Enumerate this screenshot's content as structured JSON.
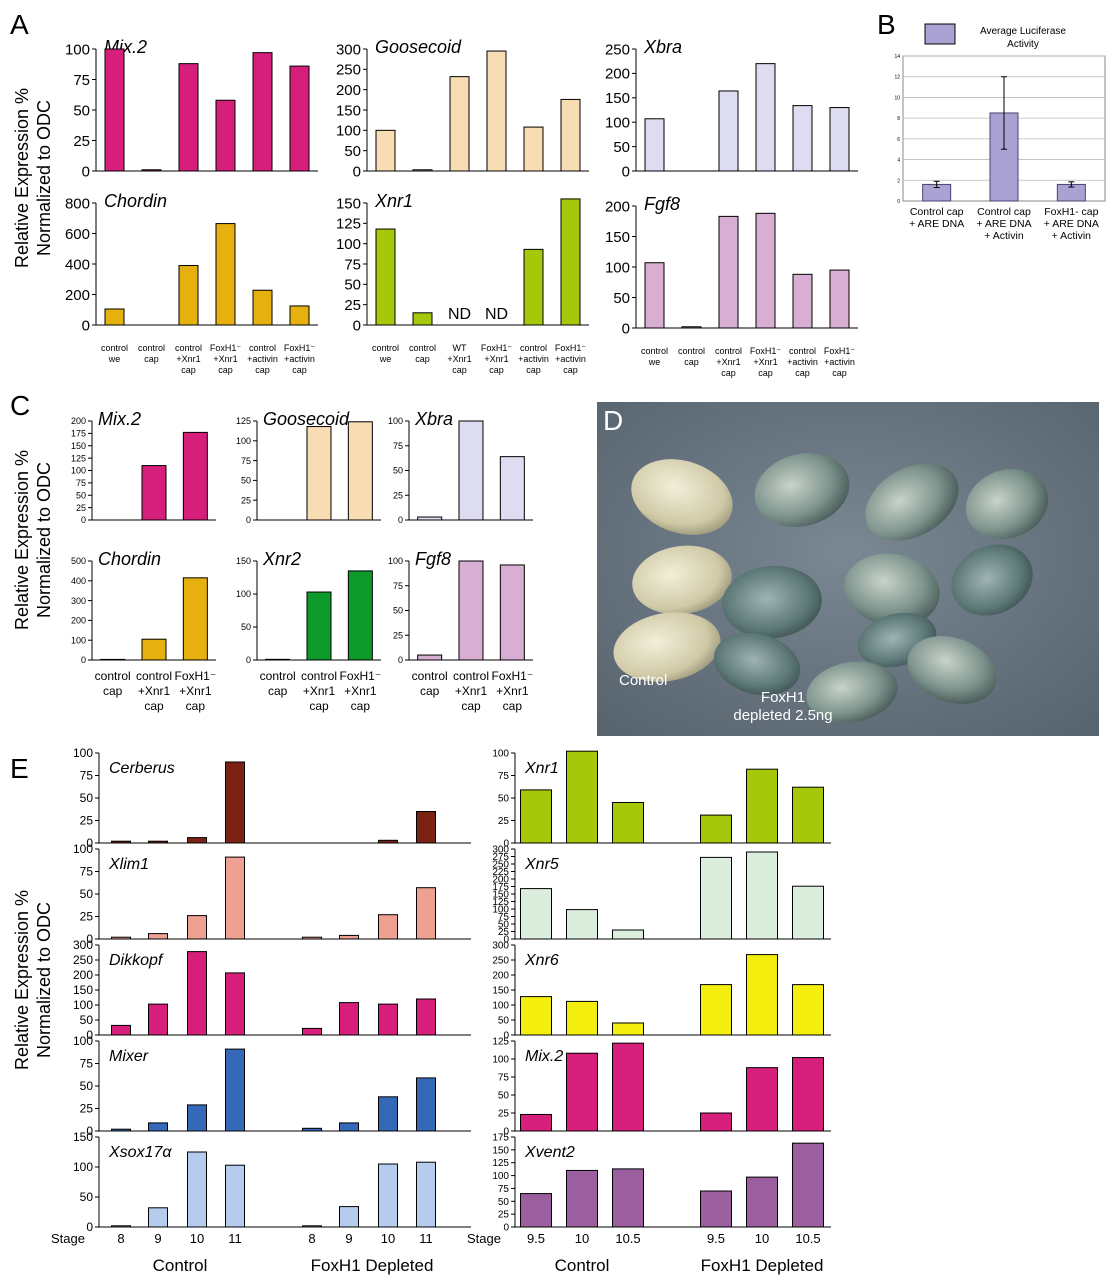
{
  "panel_labels": {
    "A": "A",
    "B": "B",
    "C": "C",
    "D": "D",
    "E": "E"
  },
  "y_axis_title": [
    "Relative Expression %",
    "Normalized to ODC"
  ],
  "nd_label": "ND",
  "photo": {
    "label_control": "Control",
    "label_foxh1": [
      "FoxH1",
      "depleted 2.5ng"
    ]
  },
  "colors": {
    "magenta": "#d61f7b",
    "peach": "#f7dcb4",
    "lavender": "#dedcf1",
    "gold": "#e6b10f",
    "lime": "#a6c80a",
    "mauve": "#d8aed3",
    "green": "#0e9a2b",
    "brown": "#7a2314",
    "salmon": "#eea192",
    "blue": "#3668b9",
    "lightblue": "#b5ccee",
    "mint": "#dbeedd",
    "yellow": "#f3ee0e",
    "purple": "#9b5fa0",
    "luc": "#aaa2d3"
  },
  "chart_data": [
    {
      "id": "A-mix2",
      "type": "bar",
      "title": "Mix.2",
      "ylim": [
        0,
        100
      ],
      "ticks": [
        0,
        25,
        50,
        75,
        100
      ],
      "categories": [
        [
          "control",
          "we"
        ],
        [
          "control",
          "cap"
        ],
        [
          "control",
          "+Xnr1",
          "cap"
        ],
        [
          "FoxH1⁻",
          "+Xnr1",
          "cap"
        ],
        [
          "control",
          "+activin",
          "cap"
        ],
        [
          "FoxH1⁻",
          "+activin",
          "cap"
        ]
      ],
      "values": [
        100,
        1,
        88,
        58,
        97,
        86
      ],
      "color": "magenta",
      "show_categories": false
    },
    {
      "id": "A-gsc",
      "type": "bar",
      "title": "Goosecoid",
      "ylim": [
        0,
        300
      ],
      "ticks": [
        0,
        50,
        100,
        150,
        200,
        250,
        300
      ],
      "categories": [
        [
          "control",
          "we"
        ],
        [
          "control",
          "cap"
        ],
        [
          "WT",
          "+Xnr1",
          "cap"
        ],
        [
          "FoxH1⁻",
          "+Xnr1",
          "cap"
        ],
        [
          "control",
          "+activin",
          "cap"
        ],
        [
          "FoxH1⁻",
          "+activin",
          "cap"
        ]
      ],
      "values": [
        100,
        3,
        232,
        295,
        108,
        176
      ],
      "color": "peach",
      "show_categories": false
    },
    {
      "id": "A-xbra",
      "type": "bar",
      "title": "Xbra",
      "ylim": [
        0,
        250
      ],
      "ticks": [
        0,
        50,
        100,
        150,
        200,
        250
      ],
      "categories": [
        [
          "control",
          "we"
        ],
        [
          "control",
          "cap"
        ],
        [
          "control",
          "+Xnr1",
          "cap"
        ],
        [
          "FoxH1⁻",
          "+Xnr1",
          "cap"
        ],
        [
          "control",
          "+activin",
          "cap"
        ],
        [
          "FoxH1⁻",
          "+activin",
          "cap"
        ]
      ],
      "values": [
        107,
        0,
        164,
        220,
        134,
        130
      ],
      "color": "lavender",
      "show_categories": false
    },
    {
      "id": "A-chd",
      "type": "bar",
      "title": "Chordin",
      "ylim": [
        0,
        800
      ],
      "ticks": [
        0,
        200,
        400,
        600,
        800
      ],
      "categories": [
        [
          "control",
          "we"
        ],
        [
          "control",
          "cap"
        ],
        [
          "control",
          "+Xnr1",
          "cap"
        ],
        [
          "FoxH1⁻",
          "+Xnr1",
          "cap"
        ],
        [
          "control",
          "+activin",
          "cap"
        ],
        [
          "FoxH1⁻",
          "+activin",
          "cap"
        ]
      ],
      "values": [
        105,
        0,
        390,
        665,
        228,
        125
      ],
      "color": "gold",
      "show_categories": true
    },
    {
      "id": "A-xnr1",
      "type": "bar",
      "title": "Xnr1",
      "ylim": [
        0,
        150
      ],
      "ticks": [
        0,
        25,
        50,
        75,
        100,
        125,
        150
      ],
      "categories": [
        [
          "control",
          "we"
        ],
        [
          "control",
          "cap"
        ],
        [
          "WT",
          "+Xnr1",
          "cap"
        ],
        [
          "FoxH1⁻",
          "+Xnr1",
          "cap"
        ],
        [
          "control",
          "+activin",
          "cap"
        ],
        [
          "FoxH1⁻",
          "+activin",
          "cap"
        ]
      ],
      "values": [
        118,
        15,
        null,
        null,
        93,
        155
      ],
      "nd": [
        false,
        false,
        true,
        true,
        false,
        false
      ],
      "color": "lime",
      "show_categories": true
    },
    {
      "id": "A-fgf8",
      "type": "bar",
      "title": "Fgf8",
      "ylim": [
        0,
        200
      ],
      "ticks": [
        0,
        50,
        100,
        150,
        200
      ],
      "categories": [
        [
          "control",
          "we"
        ],
        [
          "control",
          "cap"
        ],
        [
          "control",
          "+Xnr1",
          "cap"
        ],
        [
          "FoxH1⁻",
          "+Xnr1",
          "cap"
        ],
        [
          "control",
          "+activin",
          "cap"
        ],
        [
          "FoxH1⁻",
          "+activin",
          "cap"
        ]
      ],
      "values": [
        107,
        2,
        183,
        188,
        88,
        95
      ],
      "color": "mauve",
      "show_categories": true
    },
    {
      "id": "B-luc",
      "type": "bar",
      "title": "",
      "legend": "Average Luciferase Activity",
      "ylim": [
        0,
        14
      ],
      "ticks": [
        "0",
        "2",
        "4",
        "6",
        "8",
        "10",
        "12",
        "14"
      ],
      "grid": true,
      "categories": [
        [
          "Control cap",
          "+ ARE DNA"
        ],
        [
          "Control cap",
          "+ ARE DNA",
          "+ Activin"
        ],
        [
          "FoxH1- cap",
          "+ ARE DNA",
          "+ Activin"
        ]
      ],
      "values": [
        1.6,
        8.5,
        1.6
      ],
      "errors": [
        0.3,
        3.5,
        0.25
      ],
      "color": "luc",
      "show_categories": true
    },
    {
      "id": "C-mix2",
      "type": "bar",
      "title": "Mix.2",
      "ylim": [
        0,
        200
      ],
      "ticks": [
        0,
        25,
        50,
        75,
        100,
        125,
        150,
        175,
        200
      ],
      "categories": [
        [
          "control",
          "cap"
        ],
        [
          "control",
          "+Xnr1",
          "cap"
        ],
        [
          "FoxH1⁻",
          "+Xnr1",
          "cap"
        ]
      ],
      "values": [
        0,
        110,
        177
      ],
      "color": "magenta",
      "show_categories": false
    },
    {
      "id": "C-gsc",
      "type": "bar",
      "title": "Goosecoid",
      "ylim": [
        0,
        125
      ],
      "ticks": [
        0,
        25,
        50,
        75,
        100,
        125
      ],
      "categories": [
        [
          "control",
          "cap"
        ],
        [
          "control",
          "+Xnr1",
          "cap"
        ],
        [
          "FoxH1⁻",
          "+Xnr1",
          "cap"
        ]
      ],
      "values": [
        0,
        118,
        124
      ],
      "color": "peach",
      "show_categories": false
    },
    {
      "id": "C-xbra",
      "type": "bar",
      "title": "Xbra",
      "ylim": [
        0,
        100
      ],
      "ticks": [
        0,
        25,
        50,
        75,
        100
      ],
      "categories": [
        [
          "control",
          "cap"
        ],
        [
          "control",
          "+Xnr1",
          "cap"
        ],
        [
          "FoxH1⁻",
          "+Xnr1",
          "cap"
        ]
      ],
      "values": [
        3,
        100,
        64
      ],
      "color": "lavender",
      "show_categories": false
    },
    {
      "id": "C-chd",
      "type": "bar",
      "title": "Chordin",
      "ylim": [
        0,
        500
      ],
      "ticks": [
        0,
        100,
        200,
        300,
        400,
        500
      ],
      "categories": [
        [
          "control",
          "cap"
        ],
        [
          "control",
          "+Xnr1",
          "cap"
        ],
        [
          "FoxH1⁻",
          "+Xnr1",
          "cap"
        ]
      ],
      "values": [
        3,
        105,
        415
      ],
      "color": "gold",
      "show_categories": true
    },
    {
      "id": "C-xnr2",
      "type": "bar",
      "title": "Xnr2",
      "ylim": [
        0,
        150
      ],
      "ticks": [
        0,
        50,
        100,
        150
      ],
      "categories": [
        [
          "control",
          "cap"
        ],
        [
          "control",
          "+Xnr1",
          "cap"
        ],
        [
          "FoxH1⁻",
          "+Xnr1",
          "cap"
        ]
      ],
      "values": [
        1,
        103,
        135
      ],
      "color": "green",
      "show_categories": true
    },
    {
      "id": "C-fgf8",
      "type": "bar",
      "title": "Fgf8",
      "ylim": [
        0,
        100
      ],
      "ticks": [
        0,
        25,
        50,
        75,
        100
      ],
      "categories": [
        [
          "control",
          "cap"
        ],
        [
          "control",
          "+Xnr1",
          "cap"
        ],
        [
          "FoxH1⁻",
          "+Xnr1",
          "cap"
        ]
      ],
      "values": [
        5,
        100,
        96
      ],
      "color": "mauve",
      "show_categories": true
    },
    {
      "id": "E-cer",
      "type": "bar",
      "title": "Cerberus",
      "ylim": [
        0,
        100
      ],
      "ticks": [
        0,
        25,
        50,
        75,
        100
      ],
      "groups": [
        "Control",
        "FoxH1  Depleted"
      ],
      "stages": [
        "8",
        "9",
        "10",
        "11"
      ],
      "values": [
        [
          2,
          2,
          6,
          90
        ],
        [
          0,
          0,
          3,
          35
        ]
      ],
      "color": "brown"
    },
    {
      "id": "E-xlim1",
      "type": "bar",
      "title": "Xlim1",
      "ylim": [
        0,
        100
      ],
      "ticks": [
        0,
        25,
        50,
        75,
        100
      ],
      "groups": [
        "Control",
        "FoxH1  Depleted"
      ],
      "stages": [
        "8",
        "9",
        "10",
        "11"
      ],
      "values": [
        [
          2,
          6,
          26,
          91
        ],
        [
          2,
          4,
          27,
          57
        ]
      ],
      "color": "salmon"
    },
    {
      "id": "E-dkk",
      "type": "bar",
      "title": "Dikkopf",
      "ylim": [
        0,
        300
      ],
      "ticks": [
        0,
        50,
        100,
        150,
        200,
        250,
        300
      ],
      "groups": [
        "Control",
        "FoxH1  Depleted"
      ],
      "stages": [
        "8",
        "9",
        "10",
        "11"
      ],
      "values": [
        [
          32,
          103,
          278,
          207
        ],
        [
          22,
          108,
          103,
          120
        ]
      ],
      "color": "magenta"
    },
    {
      "id": "E-mixer",
      "type": "bar",
      "title": "Mixer",
      "ylim": [
        0,
        100
      ],
      "ticks": [
        0,
        25,
        50,
        75,
        100
      ],
      "groups": [
        "Control",
        "FoxH1  Depleted"
      ],
      "stages": [
        "8",
        "9",
        "10",
        "11"
      ],
      "values": [
        [
          2,
          9,
          29,
          91
        ],
        [
          3,
          9,
          38,
          59
        ]
      ],
      "color": "blue"
    },
    {
      "id": "E-xsox17",
      "type": "bar",
      "title": "Xsox17α",
      "ylim": [
        0,
        150
      ],
      "ticks": [
        0,
        50,
        100,
        150
      ],
      "groups": [
        "Control",
        "FoxH1  Depleted"
      ],
      "stages": [
        "8",
        "9",
        "10",
        "11"
      ],
      "values": [
        [
          2,
          32,
          125,
          103
        ],
        [
          2,
          34,
          105,
          108
        ]
      ],
      "color": "lightblue",
      "stage_title": "Stage",
      "show_groups": true
    },
    {
      "id": "E-xnr1",
      "type": "bar",
      "title": "Xnr1",
      "ylim": [
        0,
        100
      ],
      "ticks": [
        0,
        25,
        50,
        75,
        100
      ],
      "groups": [
        "Control",
        "FoxH1  Depleted"
      ],
      "stages": [
        "9.5",
        "10",
        "10.5"
      ],
      "values": [
        [
          59,
          102,
          45
        ],
        [
          31,
          82,
          62
        ]
      ],
      "color": "lime"
    },
    {
      "id": "E-xnr5",
      "type": "bar",
      "title": "Xnr5",
      "ylim": [
        0,
        300
      ],
      "ticks": [
        0,
        25,
        50,
        75,
        100,
        125,
        150,
        175,
        200,
        225,
        250,
        275,
        300
      ],
      "groups": [
        "Control",
        "FoxH1  Depleted"
      ],
      "stages": [
        "9.5",
        "10",
        "10.5"
      ],
      "values": [
        [
          168,
          98,
          30
        ],
        [
          272,
          290,
          176
        ]
      ],
      "color": "mint"
    },
    {
      "id": "E-xnr6",
      "type": "bar",
      "title": "Xnr6",
      "ylim": [
        0,
        300
      ],
      "ticks": [
        0,
        50,
        100,
        150,
        200,
        250,
        300
      ],
      "groups": [
        "Control",
        "FoxH1  Depleted"
      ],
      "stages": [
        "9.5",
        "10",
        "10.5"
      ],
      "values": [
        [
          128,
          112,
          40
        ],
        [
          168,
          268,
          168
        ]
      ],
      "color": "yellow"
    },
    {
      "id": "E-mix2",
      "type": "bar",
      "title": "Mix.2",
      "ylim": [
        0,
        125
      ],
      "ticks": [
        0,
        25,
        50,
        75,
        100,
        125
      ],
      "groups": [
        "Control",
        "FoxH1  Depleted"
      ],
      "stages": [
        "9.5",
        "10",
        "10.5"
      ],
      "values": [
        [
          23,
          108,
          122
        ],
        [
          25,
          88,
          102
        ]
      ],
      "color": "magenta"
    },
    {
      "id": "E-xvent2",
      "type": "bar",
      "title": "Xvent2",
      "ylim": [
        0,
        175
      ],
      "ticks": [
        0,
        25,
        50,
        75,
        100,
        125,
        150,
        175
      ],
      "groups": [
        "Control",
        "FoxH1  Depleted"
      ],
      "stages": [
        "9.5",
        "10",
        "10.5"
      ],
      "values": [
        [
          65,
          110,
          113
        ],
        [
          70,
          97,
          163
        ]
      ],
      "color": "purple",
      "stage_title": "Stage",
      "show_groups": true
    }
  ]
}
